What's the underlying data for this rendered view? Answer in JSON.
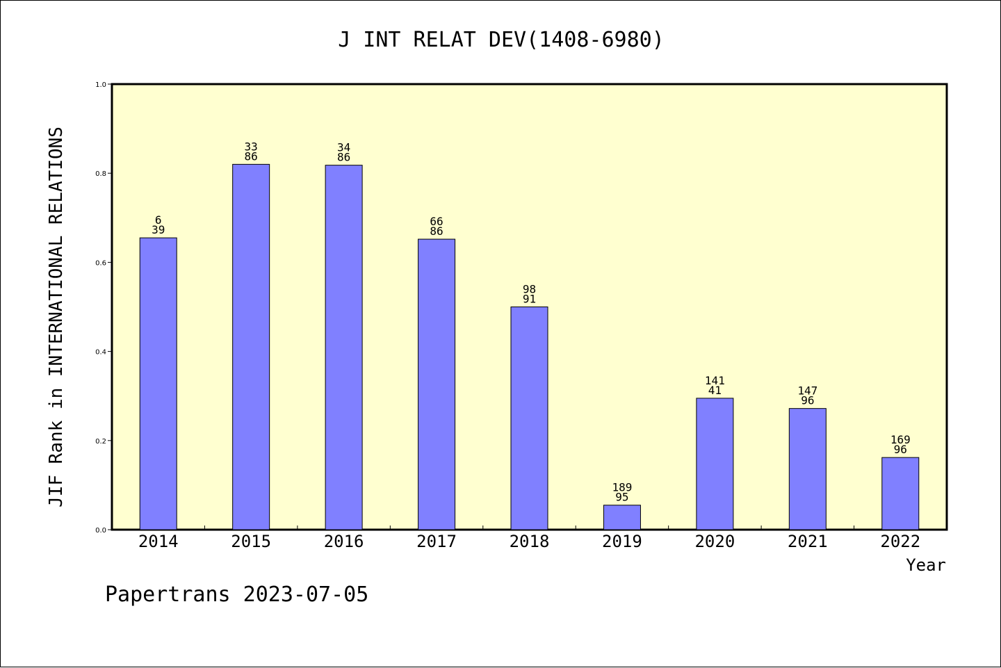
{
  "footer": "Papertrans 2023-07-05",
  "chart_data": {
    "type": "bar",
    "title": "J INT RELAT DEV(1408-6980)",
    "ylabel": "JIF Rank in INTERNATIONAL RELATIONS",
    "xlabel": "Year",
    "ylim": [
      0,
      1.0
    ],
    "yticks": [
      "0.0",
      "0.2",
      "0.4",
      "0.6",
      "0.8",
      "1.0"
    ],
    "categories": [
      "2014",
      "2015",
      "2016",
      "2017",
      "2018",
      "2019",
      "2020",
      "2021",
      "2022"
    ],
    "values": [
      0.655,
      0.82,
      0.818,
      0.652,
      0.5,
      0.055,
      0.295,
      0.272,
      0.162
    ],
    "labels_top": [
      "6",
      "33",
      "34",
      "66",
      "98",
      "189",
      "141",
      "147",
      "169"
    ],
    "labels_bottom": [
      "39",
      "86",
      "86",
      "86",
      "91",
      "95",
      "41",
      "96",
      "96"
    ],
    "grid": false,
    "plot_background": "#FFFFD0",
    "bar_color": "#8080FF"
  }
}
